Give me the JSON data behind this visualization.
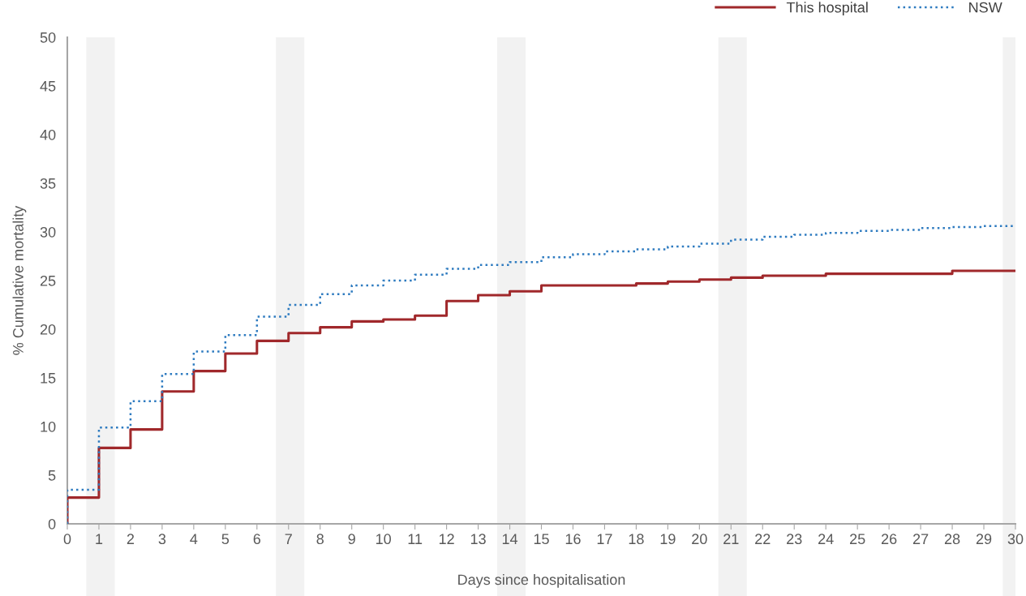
{
  "chart_data": {
    "type": "step",
    "xlabel": "Days since hospitalisation",
    "ylabel": "% Cumulative mortality",
    "xlim": [
      0,
      30
    ],
    "xticks": [
      0,
      1,
      2,
      3,
      4,
      5,
      6,
      7,
      8,
      9,
      10,
      11,
      12,
      13,
      14,
      15,
      16,
      17,
      18,
      19,
      20,
      21,
      22,
      23,
      24,
      25,
      26,
      27,
      28,
      29,
      30
    ],
    "ylim": [
      0,
      50
    ],
    "yticks": [
      0,
      5,
      10,
      15,
      20,
      25,
      30,
      35,
      40,
      45,
      50
    ],
    "grid": false,
    "legend": "top right",
    "series": [
      {
        "name": "This hospital",
        "color": "#a0282b",
        "line_style": "solid",
        "x": [
          0,
          0,
          1,
          2,
          3,
          4,
          5,
          6,
          7,
          8,
          9,
          10,
          11,
          12,
          13,
          14,
          15,
          16,
          17,
          18,
          19,
          20,
          21,
          22,
          23,
          24,
          25,
          26,
          27,
          28,
          29,
          30
        ],
        "values": [
          0,
          2.7,
          7.8,
          9.7,
          13.6,
          15.7,
          17.5,
          18.8,
          19.6,
          20.2,
          20.8,
          21.0,
          21.4,
          22.9,
          23.5,
          23.9,
          24.5,
          24.5,
          24.5,
          24.7,
          24.9,
          25.1,
          25.3,
          25.5,
          25.5,
          25.7,
          25.7,
          25.7,
          25.7,
          26.0,
          26.0,
          26.0
        ]
      },
      {
        "name": "NSW",
        "color": "#2e7bc0",
        "line_style": "dotted",
        "x": [
          0,
          0,
          1,
          2,
          3,
          4,
          5,
          6,
          7,
          8,
          9,
          10,
          11,
          12,
          13,
          14,
          15,
          16,
          17,
          18,
          19,
          20,
          21,
          22,
          23,
          24,
          25,
          26,
          27,
          28,
          29,
          30
        ],
        "values": [
          0,
          3.5,
          9.9,
          12.6,
          15.4,
          17.7,
          19.4,
          21.3,
          22.5,
          23.6,
          24.5,
          25.0,
          25.6,
          26.2,
          26.6,
          26.9,
          27.4,
          27.7,
          28.0,
          28.2,
          28.5,
          28.8,
          29.2,
          29.5,
          29.7,
          29.9,
          30.1,
          30.2,
          30.4,
          30.5,
          30.6,
          30.6
        ]
      }
    ],
    "bands": [
      {
        "axis": "x",
        "from": 0.6,
        "to": 1.5,
        "color": "#f2f2f2"
      },
      {
        "axis": "x",
        "from": 6.6,
        "to": 7.5,
        "color": "#f2f2f2"
      },
      {
        "axis": "x",
        "from": 13.6,
        "to": 14.5,
        "color": "#f2f2f2"
      },
      {
        "axis": "x",
        "from": 20.6,
        "to": 21.5,
        "color": "#f2f2f2"
      },
      {
        "axis": "x",
        "from": 29.6,
        "to": 30.0,
        "color": "#f2f2f2"
      }
    ]
  }
}
